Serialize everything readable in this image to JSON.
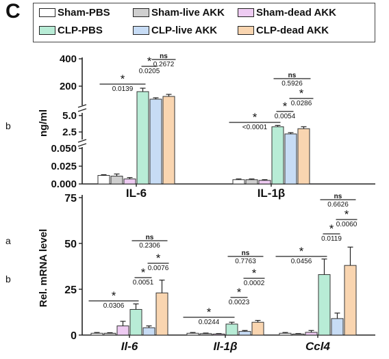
{
  "panel_letter": "C",
  "side_labels": [
    "b",
    "a",
    "b"
  ],
  "legend": [
    {
      "label": "Sham-PBS",
      "color": "#ffffff"
    },
    {
      "label": "Sham-live AKK",
      "color": "#cfcfcf"
    },
    {
      "label": "Sham-dead AKK",
      "color": "#eecbf2"
    },
    {
      "label": "CLP-PBS",
      "color": "#b8ecd6"
    },
    {
      "label": "CLP-live AKK",
      "color": "#c7dcf5"
    },
    {
      "label": "CLP-dead AKK",
      "color": "#f9d5b0"
    }
  ],
  "chart_data": [
    {
      "type": "bar",
      "ylabel": "ng/ml",
      "y_axis_breaks": true,
      "tick_labels": [
        "400",
        "200",
        "5.0",
        "2.5",
        "0.050",
        "0.025",
        "0.000"
      ],
      "categories": [
        "IL-6",
        "IL-1β"
      ],
      "series": [
        {
          "name": "Sham-PBS",
          "values": [
            0.012,
            0.006
          ],
          "errors": [
            0.001,
            0.001
          ]
        },
        {
          "name": "Sham-live AKK",
          "values": [
            0.011,
            0.006
          ],
          "errors": [
            0.003,
            0.001
          ]
        },
        {
          "name": "Sham-dead AKK",
          "values": [
            0.007,
            0.005
          ],
          "errors": [
            0.002,
            0.001
          ]
        },
        {
          "name": "CLP-PBS",
          "values": [
            160,
            3.3
          ],
          "errors": [
            25,
            0.2
          ]
        },
        {
          "name": "CLP-live AKK",
          "values": [
            105,
            2.2
          ],
          "errors": [
            10,
            0.2
          ]
        },
        {
          "name": "CLP-dead AKK",
          "values": [
            125,
            3.0
          ],
          "errors": [
            15,
            0.3
          ]
        }
      ],
      "annotations": [
        {
          "symbol": "*",
          "p": "0.0139",
          "between": [
            "Sham-PBS",
            "CLP-PBS"
          ],
          "category": "IL-6"
        },
        {
          "symbol": "*",
          "p": "0.0205",
          "between": [
            "CLP-PBS",
            "CLP-live AKK"
          ],
          "category": "IL-6"
        },
        {
          "symbol": "ns",
          "p": "0.2672",
          "between": [
            "CLP-live AKK",
            "CLP-dead AKK"
          ],
          "category": "IL-6"
        },
        {
          "symbol": "*",
          "p": "<0.0001",
          "between": [
            "Sham-PBS",
            "CLP-PBS"
          ],
          "category": "IL-1β"
        },
        {
          "symbol": "*",
          "p": "0.0054",
          "between": [
            "CLP-PBS",
            "CLP-live AKK"
          ],
          "category": "IL-1β"
        },
        {
          "symbol": "*",
          "p": "0.0286",
          "between": [
            "CLP-live AKK",
            "CLP-dead AKK"
          ],
          "category": "IL-1β"
        },
        {
          "symbol": "ns",
          "p": "0.5926",
          "between": [
            "CLP-PBS",
            "CLP-dead AKK"
          ],
          "category": "IL-1β"
        }
      ]
    },
    {
      "type": "bar",
      "ylabel": "Rel. mRNA level",
      "ylim": [
        0,
        75
      ],
      "yticks": [
        0,
        25,
        50,
        75
      ],
      "categories": [
        "Il-6",
        "Il-1β",
        "Ccl4"
      ],
      "series": [
        {
          "name": "Sham-PBS",
          "values": [
            1,
            1,
            1
          ],
          "errors": [
            0.4,
            0.4,
            0.4
          ]
        },
        {
          "name": "Sham-live AKK",
          "values": [
            1,
            0.8,
            0.5
          ],
          "errors": [
            0.3,
            0.3,
            0.3
          ]
        },
        {
          "name": "Sham-dead AKK",
          "values": [
            5,
            0.5,
            1.5
          ],
          "errors": [
            2.5,
            0.3,
            1.0
          ]
        },
        {
          "name": "CLP-PBS",
          "values": [
            14,
            6,
            33
          ],
          "errors": [
            3.0,
            1.0,
            8.5
          ]
        },
        {
          "name": "CLP-live AKK",
          "values": [
            4,
            2,
            9
          ],
          "errors": [
            1.0,
            0.5,
            3.0
          ]
        },
        {
          "name": "CLP-dead AKK",
          "values": [
            23,
            7,
            38
          ],
          "errors": [
            7.0,
            1.0,
            10.0
          ]
        }
      ],
      "annotations": [
        {
          "symbol": "*",
          "p": "0.0306",
          "between": [
            "Sham-PBS",
            "CLP-PBS"
          ],
          "category": "Il-6"
        },
        {
          "symbol": "*",
          "p": "0.0051",
          "between": [
            "CLP-PBS",
            "CLP-live AKK"
          ],
          "category": "Il-6"
        },
        {
          "symbol": "*",
          "p": "0.0076",
          "between": [
            "CLP-live AKK",
            "CLP-dead AKK"
          ],
          "category": "Il-6"
        },
        {
          "symbol": "ns",
          "p": "0.2306",
          "between": [
            "CLP-PBS",
            "CLP-dead AKK"
          ],
          "category": "Il-6"
        },
        {
          "symbol": "*",
          "p": "0.0244",
          "between": [
            "Sham-PBS",
            "CLP-PBS"
          ],
          "category": "Il-1β"
        },
        {
          "symbol": "*",
          "p": "0.0023",
          "between": [
            "CLP-PBS",
            "CLP-live AKK"
          ],
          "category": "Il-1β"
        },
        {
          "symbol": "*",
          "p": "0.0002",
          "between": [
            "CLP-live AKK",
            "CLP-dead AKK"
          ],
          "category": "Il-1β"
        },
        {
          "symbol": "ns",
          "p": "0.7763",
          "between": [
            "CLP-PBS",
            "CLP-dead AKK"
          ],
          "category": "Il-1β"
        },
        {
          "symbol": "*",
          "p": "0.0456",
          "between": [
            "Sham-PBS",
            "CLP-PBS"
          ],
          "category": "Ccl4"
        },
        {
          "symbol": "*",
          "p": "0.0119",
          "between": [
            "CLP-PBS",
            "CLP-live AKK"
          ],
          "category": "Ccl4"
        },
        {
          "symbol": "*",
          "p": "0.0060",
          "between": [
            "CLP-live AKK",
            "CLP-dead AKK"
          ],
          "category": "Ccl4"
        },
        {
          "symbol": "ns",
          "p": "0.6626",
          "between": [
            "CLP-PBS",
            "CLP-dead AKK"
          ],
          "category": "Ccl4"
        }
      ]
    }
  ]
}
